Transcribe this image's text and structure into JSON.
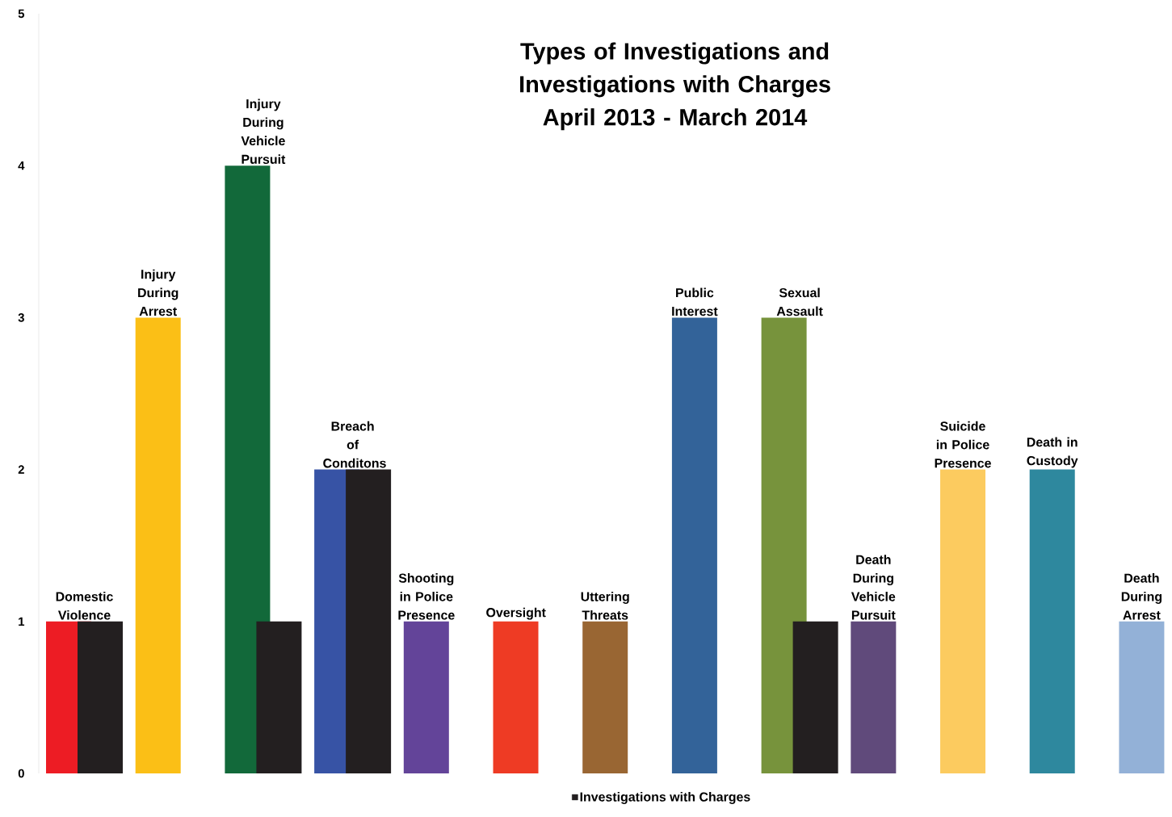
{
  "chart_data": {
    "type": "bar",
    "title": "Types of  Investigations and Investigations with Charges April 2013 - March 2014",
    "categories": [
      "Domestic Violence",
      "Injury During Arrest",
      "Injury During Vehicle Pursuit",
      "Breach of Conditons",
      "Shooting  in Police Presence",
      "Oversight",
      "Uttering Threats",
      "Public Interest",
      "Sexual Assault",
      "Death During Vehicle Pursuit",
      "Suicide in Police Presence",
      "Death in Custody",
      "Death During Arrest"
    ],
    "series": [
      {
        "colors": [
          "#ed1c24",
          "#fbbf16",
          "#12693a",
          "#3753a5",
          "#634499",
          "#ee3b24",
          "#996633",
          "#336399",
          "#77933c",
          "#604a7b",
          "#fccb5f",
          "#2e889e",
          "#93b1d7"
        ],
        "values": [
          1,
          3,
          4,
          2,
          1,
          1,
          1,
          3,
          3,
          1,
          2,
          2,
          1
        ]
      },
      {
        "name": "Investigations with Charges",
        "color": "#231f20",
        "values": [
          1,
          null,
          1,
          2,
          null,
          null,
          null,
          null,
          1,
          null,
          null,
          null,
          null
        ]
      }
    ],
    "ylim": [
      0,
      5
    ],
    "yticks": [
      0,
      1,
      2,
      3,
      4,
      5
    ],
    "grid": false,
    "legend": "bottom"
  }
}
